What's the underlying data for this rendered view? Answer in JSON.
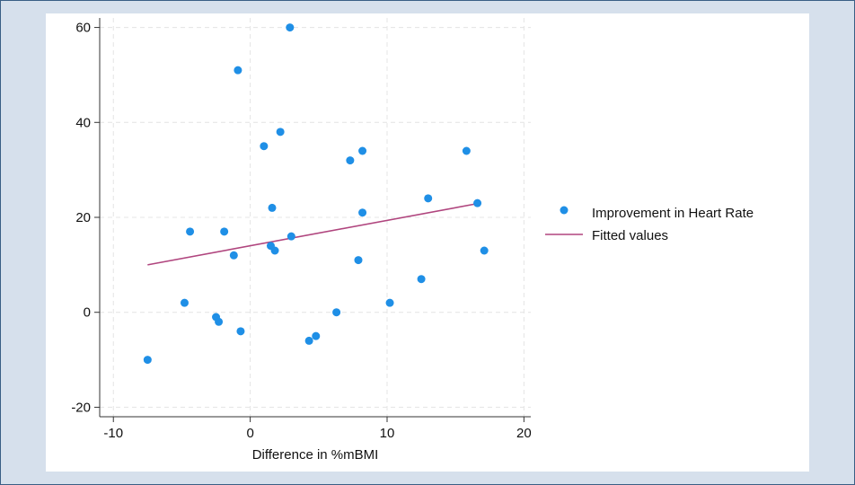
{
  "colors": {
    "page_background": "#d6e0ec",
    "frame_border": "#3a5f85",
    "panel_background": "#ffffff",
    "point": "#1f8fe6",
    "fit_line": "#b0457e",
    "grid": "#e4e4e4",
    "axis": "#333333"
  },
  "chart_data": {
    "type": "scatter",
    "title": "",
    "xlabel": "Difference in %mBMI",
    "ylabel": "",
    "xlim": [
      -11,
      20.5
    ],
    "ylim": [
      -22,
      62
    ],
    "xticks": [
      -10,
      0,
      10,
      20
    ],
    "yticks": [
      -20,
      0,
      20,
      40,
      60
    ],
    "grid": true,
    "legend_position": "right",
    "series": [
      {
        "name": "Improvement in Heart Rate",
        "kind": "scatter",
        "points": [
          [
            -7.5,
            -10
          ],
          [
            -4.8,
            2
          ],
          [
            -4.4,
            17
          ],
          [
            -2.5,
            -1
          ],
          [
            -2.3,
            -2
          ],
          [
            -1.9,
            17
          ],
          [
            -1.2,
            12
          ],
          [
            -0.9,
            51
          ],
          [
            -0.7,
            -4
          ],
          [
            1.0,
            35
          ],
          [
            1.5,
            14
          ],
          [
            1.6,
            22
          ],
          [
            1.8,
            13
          ],
          [
            2.2,
            38
          ],
          [
            2.9,
            60
          ],
          [
            3.0,
            16
          ],
          [
            4.3,
            -6
          ],
          [
            4.8,
            -5
          ],
          [
            6.3,
            0
          ],
          [
            7.3,
            32
          ],
          [
            7.9,
            11
          ],
          [
            8.2,
            34
          ],
          [
            8.2,
            21
          ],
          [
            10.2,
            2
          ],
          [
            12.5,
            7
          ],
          [
            13.0,
            24
          ],
          [
            15.8,
            34
          ],
          [
            16.6,
            23
          ],
          [
            17.1,
            13
          ]
        ]
      },
      {
        "name": "Fitted values",
        "kind": "line",
        "points": [
          [
            -7.5,
            10
          ],
          [
            16.8,
            23
          ]
        ]
      }
    ]
  }
}
